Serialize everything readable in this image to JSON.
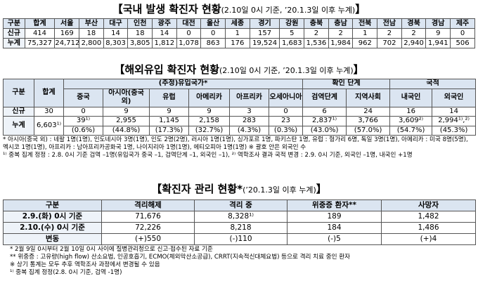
{
  "domestic": {
    "title": "【국내 발생 확진자 현황",
    "subtitle": "(2.10일 0시 기준, ’20.1.3일 이후 누계)",
    "title_end": "】",
    "header": [
      "구분",
      "합계",
      "서울",
      "부산",
      "대구",
      "인천",
      "광주",
      "대전",
      "울산",
      "세종",
      "경기",
      "강원",
      "충북",
      "충남",
      "전북",
      "전남",
      "경북",
      "경남",
      "제주"
    ],
    "rows": [
      {
        "label": "신규",
        "values": [
          "414",
          "169",
          "18",
          "14",
          "18",
          "14",
          "0",
          "0",
          "1",
          "157",
          "5",
          "2",
          "2",
          "1",
          "2",
          "2",
          "9",
          "0"
        ]
      },
      {
        "label": "누계",
        "values": [
          "75,327",
          "24,712",
          "2,800",
          "8,303",
          "3,805",
          "1,812",
          "1,078",
          "863",
          "176",
          "19,524",
          "1,683",
          "1,536",
          "1,984",
          "962",
          "702",
          "2,940",
          "1,941",
          "506"
        ]
      }
    ]
  },
  "overseas": {
    "title": "【해외유입 확진자 현황",
    "subtitle": "(2.10일 0시 기준, ’20.1.3일 이후 누계)",
    "title_end": "】",
    "group_headers": {
      "division": "구분",
      "total": "합계",
      "countries": "(추정)유입국가*",
      "stage": "확인 단계",
      "nationality": "국적"
    },
    "columns": [
      "중국",
      "아시아(중국 외)",
      "유럽",
      "아메리카",
      "아프리카",
      "오세아니아",
      "검역단계",
      "지역사회",
      "내국인",
      "외국인"
    ],
    "rows": [
      {
        "label": "신규",
        "total": "30",
        "values": [
          "0",
          "9",
          "9",
          "9",
          "3",
          "0",
          "6",
          "24",
          "16",
          "14"
        ]
      },
      {
        "label": "누계",
        "total": "6,603¹⁾",
        "values": [
          "39¹⁾",
          "2,955",
          "1,145",
          "2,158",
          "283",
          "23",
          "2,837¹⁾",
          "3,766",
          "3,609²⁾",
          "2,994¹⁾,²⁾"
        ],
        "percents": [
          "(0.6%)",
          "(44.8%)",
          "(17.3%)",
          "(32.7%)",
          "(4.3%)",
          "(0.3%)",
          "(43.0%)",
          "(57.0%)",
          "(54.7%)",
          "(45.3%)"
        ]
      }
    ],
    "notes": [
      "* 아시아(중국 외) : 네팔 1명(1명), 인도네시아 3명(1명), 인도 2명(2명), 러시아 1명(1명), 싱가포르 1명, 파키스탄 1명, 유럽 : 헝가리 6명, 독일 3명(1명), 아메리카 : 미국 8명(5명), 멕시코 1명(1명), 아프리카 : 남아프리카공화국 1명, 나이지리아 1명(1명), 에티오피아 1명(1명) ※ 괄호 안은 외국인 수",
      "¹⁾ 중복 집계 정정 : 2.8. 0시 기준 검역 –1명(유입국가 중국 –1, 검역단계 –1, 외국인 –1), ²⁾ 역학조사 결과 국적 변경 : 2.9. 0시 기준, 외국인 –1명, 내국인 +1명"
    ]
  },
  "management": {
    "title": "【확진자 관리 현황*",
    "subtitle": "(’20.1.3일 이후 누계)",
    "title_end": "】",
    "header": [
      "구분",
      "격리해제",
      "격리 중",
      "위중증 환자**",
      "사망자"
    ],
    "rows": [
      [
        "2.9.(화) 0시 기준",
        "71,676",
        "8,328¹⁾",
        "189",
        "1,482"
      ],
      [
        "2.10.(수) 0시 기준",
        "72,226",
        "8,218",
        "184",
        "1,486"
      ],
      [
        "변동",
        "(+)550",
        "(-)110",
        "(-)5",
        "(+)4"
      ]
    ],
    "notes": [
      "* 2월 9일 0시부터 2월 10일 0시 사이에 질병관리청으로 신고·접수된 자료 기준",
      "** 위중증 : 고유량(high flow) 산소요법, 인공호흡기, ECMO(체외막산소공급), CRRT(지속적신대체요법) 등으로 격리 치료 중인 환자",
      "※ 상기 통계는 모두 추후 역학조사 과정에서 변경될 수 있음",
      "¹⁾ 중복 집계 정정(2.8. 0시 기준, 검역 -1명)"
    ]
  }
}
